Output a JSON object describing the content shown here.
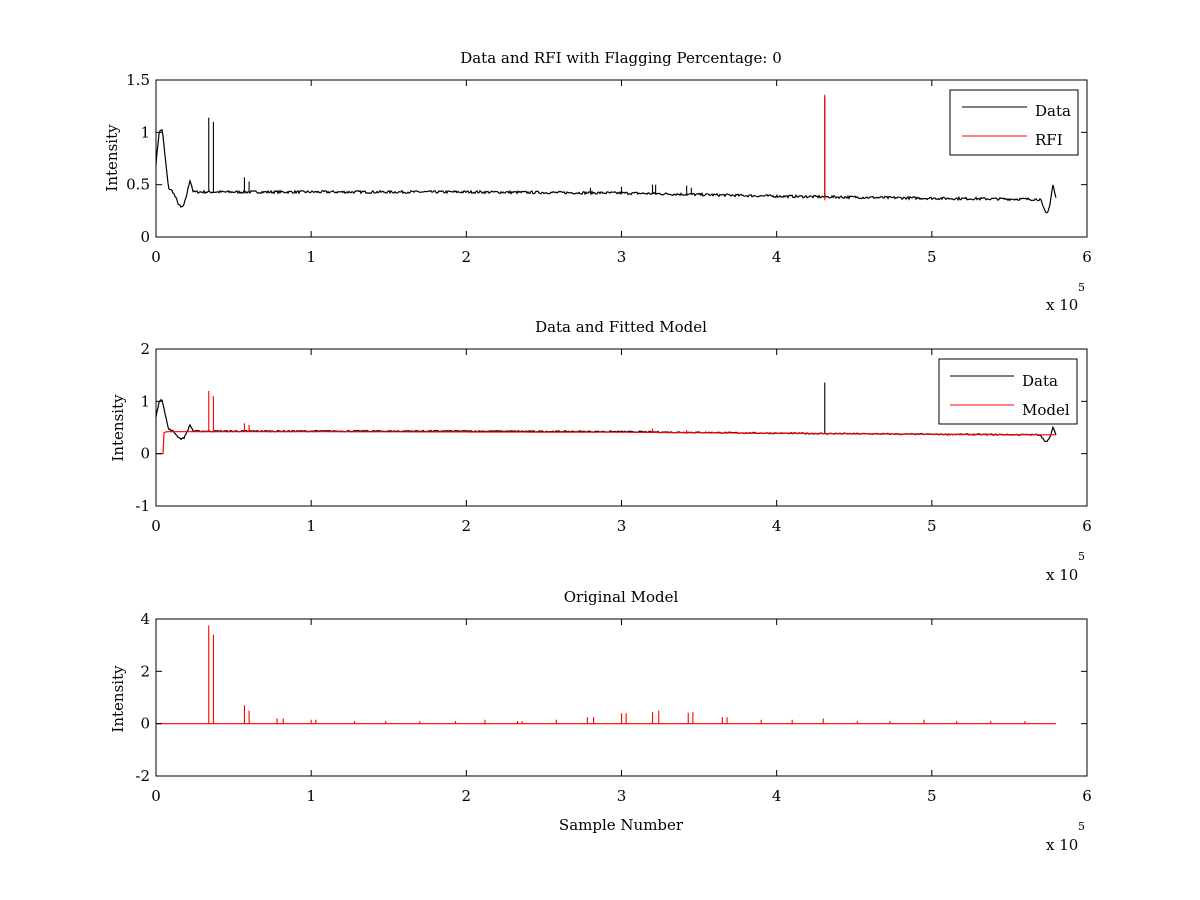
{
  "figure": {
    "background": "#ffffff",
    "colors": {
      "data": "#000000",
      "rfi": "#ff0000",
      "model": "#ff0000",
      "axes": "#000000"
    }
  },
  "chart_data": [
    {
      "type": "line",
      "title": "Data and RFI with Flagging Percentage: 0",
      "xlabel": "",
      "ylabel": "Intensity",
      "xlim": [
        0,
        600000
      ],
      "ylim": [
        0,
        1.5
      ],
      "x_ticks": [
        0,
        1,
        2,
        3,
        4,
        5,
        6
      ],
      "y_ticks": [
        "0",
        "0.5",
        "1",
        "1.5"
      ],
      "x_exponent": {
        "base": "x 10",
        "power": "5"
      },
      "legend": {
        "position": "top-right",
        "entries": [
          "Data",
          "RFI"
        ]
      },
      "grid": false,
      "series": [
        {
          "name": "Data",
          "color": "#000000",
          "baseline": [
            [
              0,
              0.7
            ],
            [
              2000,
              1.0
            ],
            [
              4000,
              1.03
            ],
            [
              6000,
              0.75
            ],
            [
              8000,
              0.47
            ],
            [
              11000,
              0.43
            ],
            [
              14000,
              0.33
            ],
            [
              16000,
              0.28
            ],
            [
              18000,
              0.3
            ],
            [
              20000,
              0.42
            ],
            [
              22000,
              0.55
            ],
            [
              24000,
              0.43
            ],
            [
              100000,
              0.43
            ],
            [
              200000,
              0.43
            ],
            [
              300000,
              0.42
            ],
            [
              400000,
              0.39
            ],
            [
              500000,
              0.37
            ],
            [
              570000,
              0.36
            ],
            [
              572000,
              0.27
            ],
            [
              574000,
              0.22
            ],
            [
              576000,
              0.3
            ],
            [
              578000,
              0.5
            ],
            [
              580000,
              0.37
            ]
          ],
          "spikes": [
            [
              34000,
              1.14
            ],
            [
              37000,
              1.1
            ],
            [
              57000,
              0.57
            ],
            [
              60000,
              0.53
            ],
            [
              280000,
              0.47
            ],
            [
              300000,
              0.48
            ],
            [
              320000,
              0.5
            ],
            [
              322000,
              0.5
            ],
            [
              342000,
              0.49
            ],
            [
              345000,
              0.47
            ],
            [
              431000,
              1.34
            ]
          ]
        },
        {
          "name": "RFI",
          "color": "#ff0000",
          "spikes": [
            [
              431000,
              1.36,
              0.35
            ]
          ]
        }
      ]
    },
    {
      "type": "line",
      "title": "Data and Fitted Model",
      "xlabel": "",
      "ylabel": "Intensity",
      "xlim": [
        0,
        600000
      ],
      "ylim": [
        -1,
        2
      ],
      "x_ticks": [
        0,
        1,
        2,
        3,
        4,
        5,
        6
      ],
      "y_ticks": [
        "-1",
        "0",
        "1",
        "2"
      ],
      "x_exponent": {
        "base": "x 10",
        "power": "5"
      },
      "legend": {
        "position": "top-right",
        "entries": [
          "Data",
          "Model"
        ]
      },
      "grid": false,
      "series": [
        {
          "name": "Data",
          "color": "#000000",
          "baseline": [
            [
              0,
              0.7
            ],
            [
              2000,
              1.0
            ],
            [
              4000,
              1.03
            ],
            [
              6000,
              0.75
            ],
            [
              8000,
              0.47
            ],
            [
              11000,
              0.43
            ],
            [
              14000,
              0.33
            ],
            [
              16000,
              0.28
            ],
            [
              18000,
              0.3
            ],
            [
              20000,
              0.42
            ],
            [
              22000,
              0.55
            ],
            [
              24000,
              0.43
            ],
            [
              100000,
              0.43
            ],
            [
              200000,
              0.43
            ],
            [
              300000,
              0.42
            ],
            [
              400000,
              0.39
            ],
            [
              500000,
              0.37
            ],
            [
              570000,
              0.36
            ],
            [
              572000,
              0.27
            ],
            [
              574000,
              0.22
            ],
            [
              576000,
              0.3
            ],
            [
              578000,
              0.5
            ],
            [
              580000,
              0.37
            ]
          ],
          "spikes": [
            [
              431000,
              1.36
            ]
          ]
        },
        {
          "name": "Model",
          "color": "#ff0000",
          "baseline": [
            [
              0,
              0
            ],
            [
              5000,
              0
            ],
            [
              5000,
              0.4
            ],
            [
              7000,
              0.42
            ],
            [
              100000,
              0.42
            ],
            [
              300000,
              0.41
            ],
            [
              500000,
              0.37
            ],
            [
              580000,
              0.36
            ]
          ],
          "spikes": [
            [
              34000,
              1.2
            ],
            [
              37000,
              1.1
            ],
            [
              57000,
              0.58
            ],
            [
              60000,
              0.55
            ],
            [
              320000,
              0.48
            ],
            [
              342000,
              0.45
            ]
          ]
        }
      ]
    },
    {
      "type": "line",
      "title": "Original Model",
      "xlabel": "Sample Number",
      "ylabel": "Intensity",
      "xlim": [
        0,
        600000
      ],
      "ylim": [
        -2,
        4
      ],
      "x_ticks": [
        0,
        1,
        2,
        3,
        4,
        5,
        6
      ],
      "y_ticks": [
        "-2",
        "0",
        "2",
        "4"
      ],
      "x_exponent": {
        "base": "x 10",
        "power": "5"
      },
      "legend": null,
      "grid": false,
      "series": [
        {
          "name": "Original Model",
          "color": "#ff0000",
          "baseline": [
            [
              0,
              0
            ],
            [
              580000,
              0
            ]
          ],
          "spikes": [
            [
              34000,
              3.75
            ],
            [
              37000,
              3.4
            ],
            [
              57000,
              0.7
            ],
            [
              60000,
              0.5
            ],
            [
              78000,
              0.2
            ],
            [
              82000,
              0.2
            ],
            [
              100000,
              0.15
            ],
            [
              103000,
              0.15
            ],
            [
              128000,
              0.1
            ],
            [
              148000,
              0.1
            ],
            [
              170000,
              0.1
            ],
            [
              193000,
              0.1
            ],
            [
              212000,
              0.15
            ],
            [
              233000,
              0.1
            ],
            [
              236000,
              0.1
            ],
            [
              258000,
              0.15
            ],
            [
              278000,
              0.25
            ],
            [
              282000,
              0.25
            ],
            [
              300000,
              0.4
            ],
            [
              303000,
              0.4
            ],
            [
              320000,
              0.45
            ],
            [
              324000,
              0.5
            ],
            [
              343000,
              0.42
            ],
            [
              346000,
              0.45
            ],
            [
              365000,
              0.25
            ],
            [
              368000,
              0.25
            ],
            [
              390000,
              0.15
            ],
            [
              410000,
              0.15
            ],
            [
              430000,
              0.2
            ],
            [
              452000,
              0.1
            ],
            [
              473000,
              0.1
            ],
            [
              495000,
              0.15
            ],
            [
              516000,
              0.1
            ],
            [
              538000,
              0.1
            ],
            [
              560000,
              0.1
            ]
          ]
        }
      ]
    }
  ]
}
